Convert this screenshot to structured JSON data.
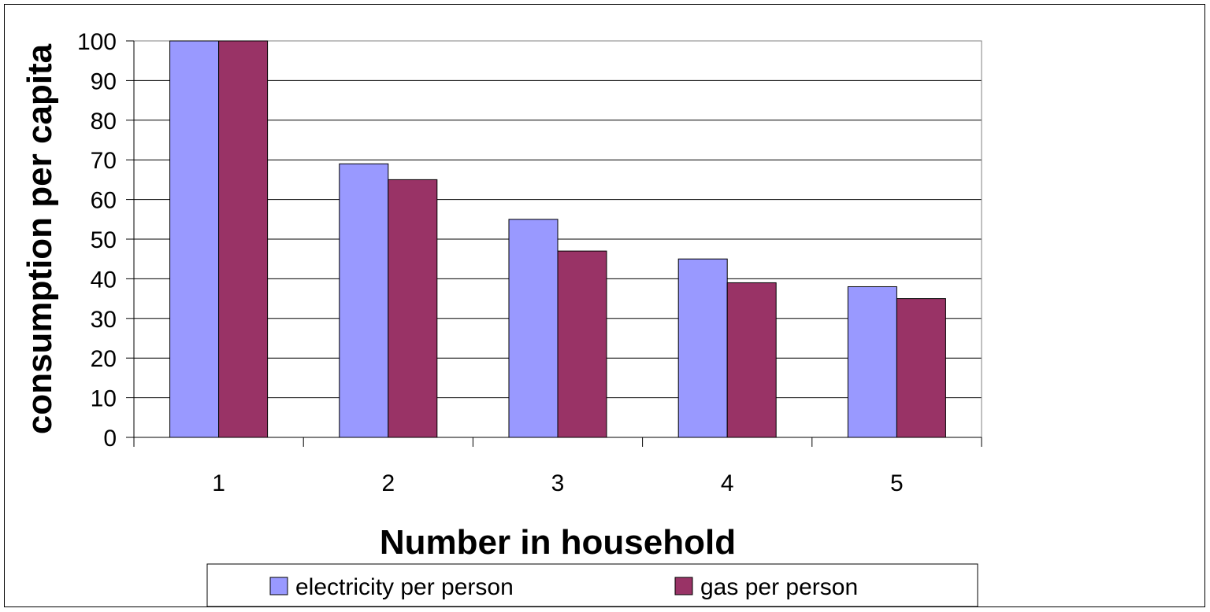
{
  "chart_data": {
    "type": "bar",
    "title": "",
    "xlabel": "Number in household",
    "ylabel": "consumption per capita",
    "categories": [
      "1",
      "2",
      "3",
      "4",
      "5"
    ],
    "series": [
      {
        "name": "electricity per person",
        "color": "#9999ff",
        "values": [
          100,
          69,
          55,
          45,
          38
        ]
      },
      {
        "name": "gas per person",
        "color": "#993366",
        "values": [
          100,
          65,
          47,
          39,
          35
        ]
      }
    ],
    "ylim": [
      0,
      100
    ],
    "yticks": [
      "0",
      "10",
      "20",
      "30",
      "40",
      "50",
      "60",
      "70",
      "80",
      "90",
      "100"
    ],
    "grid": true,
    "legend_position": "bottom"
  }
}
